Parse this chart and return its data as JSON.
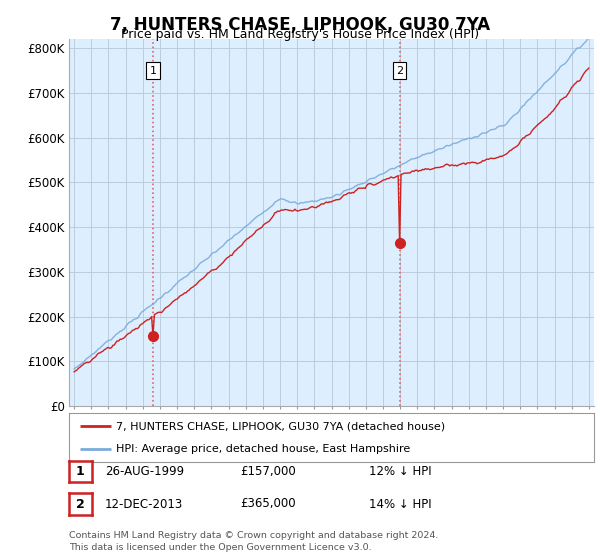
{
  "title": "7, HUNTERS CHASE, LIPHOOK, GU30 7YA",
  "subtitle": "Price paid vs. HM Land Registry's House Price Index (HPI)",
  "ylim": [
    0,
    820000
  ],
  "yticks": [
    0,
    100000,
    200000,
    300000,
    400000,
    500000,
    600000,
    700000,
    800000
  ],
  "hpi_color": "#7aabdb",
  "price_color": "#cc2222",
  "vline_color": "#dd6666",
  "sale1_value": 157000,
  "sale2_value": 365000,
  "legend_label1": "7, HUNTERS CHASE, LIPHOOK, GU30 7YA (detached house)",
  "legend_label2": "HPI: Average price, detached house, East Hampshire",
  "annotation1_label": "1",
  "annotation2_label": "2",
  "table_rows": [
    [
      "1",
      "26-AUG-1999",
      "£157,000",
      "12% ↓ HPI"
    ],
    [
      "2",
      "12-DEC-2013",
      "£365,000",
      "14% ↓ HPI"
    ]
  ],
  "footer": "Contains HM Land Registry data © Crown copyright and database right 2024.\nThis data is licensed under the Open Government Licence v3.0.",
  "background_color": "#ffffff",
  "chart_bg_color": "#ddeeff",
  "grid_color": "#bbccdd",
  "start_year": 1995,
  "end_year": 2025
}
